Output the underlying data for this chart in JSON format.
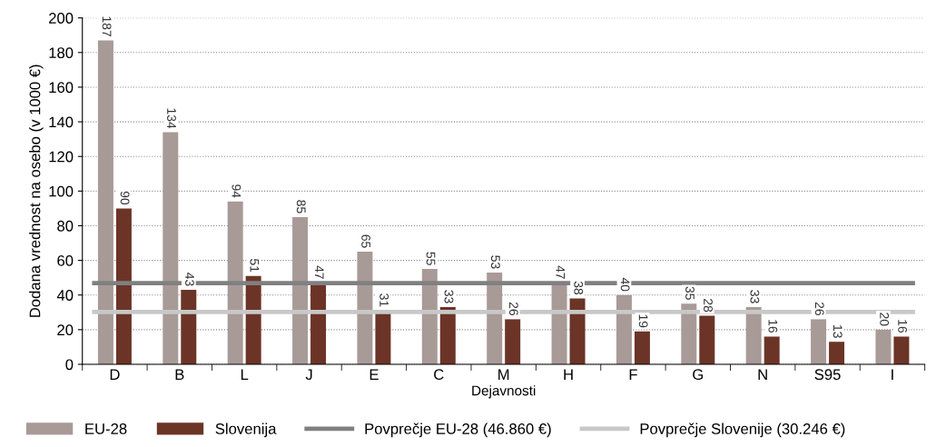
{
  "chart_data": {
    "type": "bar",
    "xlabel": "Dejavnosti",
    "ylabel": "Dodana vrednost na osebo (v 1000 €)",
    "categories": [
      "D",
      "B",
      "L",
      "J",
      "E",
      "C",
      "M",
      "H",
      "F",
      "G",
      "N",
      "S95",
      "I"
    ],
    "series": [
      {
        "name": "EU-28",
        "color": "#a89a97",
        "values": [
          187,
          134,
          94,
          85,
          65,
          55,
          53,
          47,
          40,
          35,
          33,
          26,
          20
        ]
      },
      {
        "name": "Slovenija",
        "color": "#6b3427",
        "values": [
          90,
          43,
          51,
          47,
          31,
          33,
          26,
          38,
          19,
          28,
          16,
          13,
          16
        ]
      }
    ],
    "ref_lines": [
      {
        "axis": "y",
        "value": 46.86,
        "label": "Povprečje EU-28 (46.860 €)",
        "color": "#808080",
        "line_style": "solid"
      },
      {
        "axis": "y",
        "value": 30.246,
        "label": "Povprečje Slovenije (30.246 €)",
        "color": "#c8c8c8",
        "line_style": "solid"
      }
    ],
    "ylim": [
      0,
      200
    ],
    "yticks": [
      0,
      20,
      40,
      60,
      80,
      100,
      120,
      140,
      160,
      180,
      200
    ],
    "grid": "y",
    "legend": "bottom",
    "data_labels": true
  }
}
